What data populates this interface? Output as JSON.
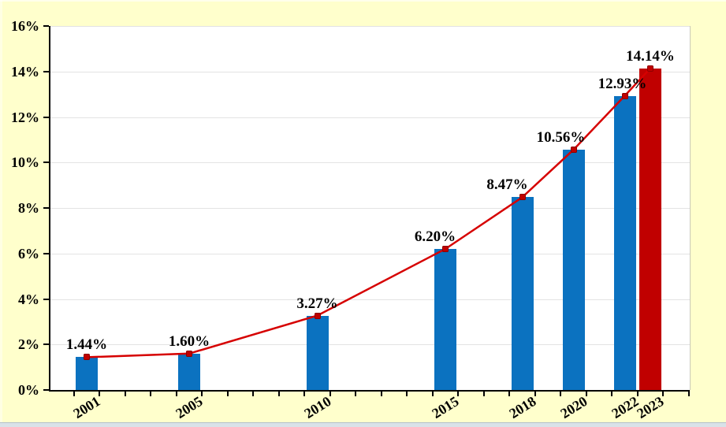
{
  "chart_data": {
    "type": "bar",
    "overlay": "line",
    "title": "",
    "xlabel": "",
    "ylabel": "",
    "categories": [
      "2001",
      "2005",
      "2010",
      "2015",
      "2018",
      "2020",
      "2022",
      "2023"
    ],
    "x_years": [
      2001,
      2005,
      2010,
      2015,
      2018,
      2020,
      2022,
      2023
    ],
    "values": [
      1.44,
      1.6,
      3.27,
      6.2,
      8.47,
      10.56,
      12.93,
      14.14
    ],
    "data_labels": [
      "1.44%",
      "1.60%",
      "3.27%",
      "6.20%",
      "8.47%",
      "10.56%",
      "12.93%",
      "14.14%"
    ],
    "highlight_year": 2023,
    "ylim": [
      0,
      16
    ],
    "ytick_step": 2,
    "ytick_labels_top_to_bottom": [
      "16%",
      "14%",
      "12%",
      "10%",
      "8%",
      "6%",
      "4%",
      "2%",
      "0%"
    ],
    "grid": true,
    "legend": false,
    "x_axis": {
      "minor_ticks_yearly": true,
      "first_tick_year": 2001,
      "last_tick_year": 2025
    },
    "colors": {
      "background": "#FFFFCC",
      "plot_background": "#FFFFFF",
      "bar": "#0B72C0",
      "bar_highlight": "#C00000",
      "line": "#D60000",
      "marker": "#C00000",
      "marker_edge": "#8E0000",
      "axis": "#000000",
      "gridline": "#E3E3E3",
      "text": "#000000"
    },
    "layout": {
      "label_dx": [
        0,
        0,
        0,
        -13,
        -19,
        -16,
        -3,
        0
      ]
    }
  }
}
